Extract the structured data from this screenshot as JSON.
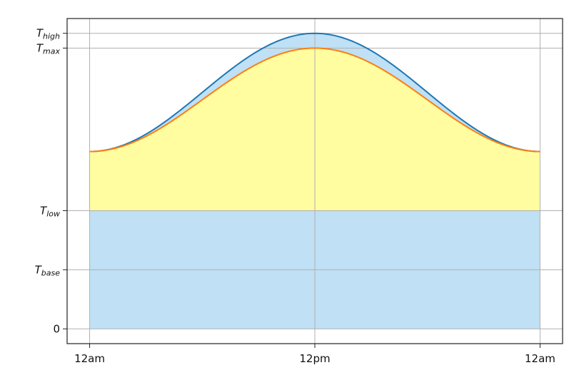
{
  "chart_data": {
    "type": "area",
    "title": "",
    "xlabel": "",
    "ylabel": "",
    "x_ticks": [
      {
        "x": 0,
        "label": "12am"
      },
      {
        "x": 12,
        "label": "12pm"
      },
      {
        "x": 24,
        "label": "12am"
      }
    ],
    "y_ticks": [
      {
        "y": 0,
        "label": "0",
        "sub": ""
      },
      {
        "y": 10,
        "label": "T",
        "sub": "base"
      },
      {
        "y": 20,
        "label": "T",
        "sub": "low"
      },
      {
        "y": 47.5,
        "label": "T",
        "sub": "max"
      },
      {
        "y": 50,
        "label": "T",
        "sub": "high"
      }
    ],
    "xlim": [
      -1.2,
      25.2
    ],
    "ylim": [
      -2.5,
      52.5
    ],
    "grid": true,
    "legend": "none",
    "curves": [
      {
        "color": "#1f77b4",
        "low": 30,
        "peak": 50
      },
      {
        "color": "#ff7f0e",
        "low": 30,
        "peak": 47.5
      }
    ],
    "fills": {
      "below_low": "#bfe0f5",
      "between_curves": "#bfe0f5",
      "above_low": "#fffda0"
    }
  }
}
